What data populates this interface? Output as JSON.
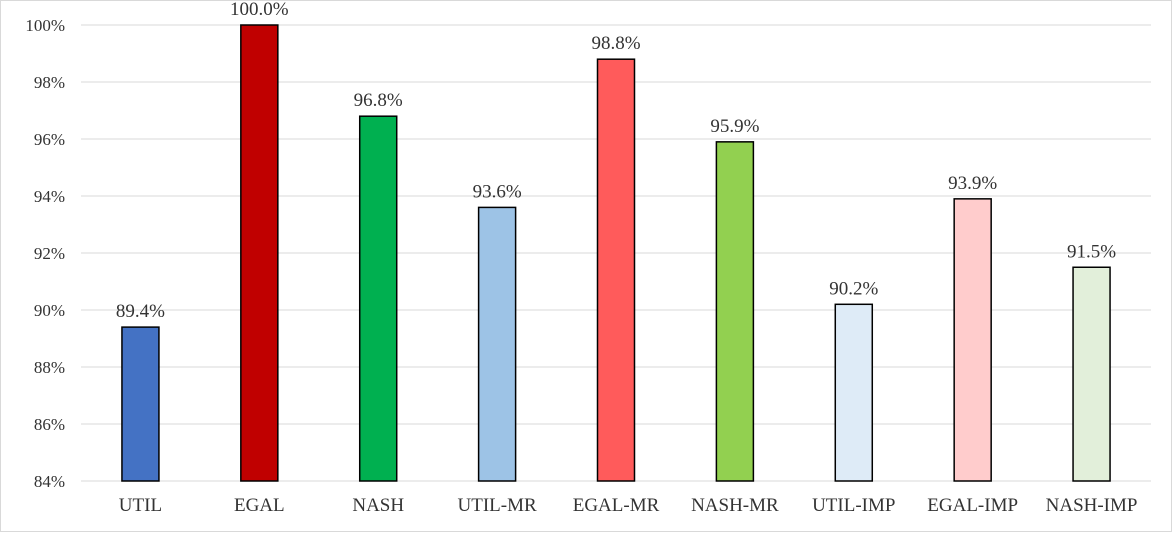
{
  "chart_data": {
    "type": "bar",
    "title": "",
    "xlabel": "",
    "ylabel": "",
    "ylim": [
      84,
      100
    ],
    "yticks": [
      84,
      86,
      88,
      90,
      92,
      94,
      96,
      98,
      100
    ],
    "ytick_format": "percent_integer",
    "grid": true,
    "legend": "none",
    "categories": [
      "UTIL",
      "EGAL",
      "NASH",
      "UTIL-MR",
      "EGAL-MR",
      "NASH-MR",
      "UTIL-IMP",
      "EGAL-IMP",
      "NASH-IMP"
    ],
    "values": [
      89.4,
      100.0,
      96.8,
      93.6,
      98.8,
      95.9,
      90.2,
      93.9,
      91.5
    ],
    "data_labels": [
      "89.4%",
      "100.0%",
      "96.8%",
      "93.6%",
      "98.8%",
      "95.9%",
      "90.2%",
      "93.9%",
      "91.5%"
    ],
    "colors": [
      "#4472C4",
      "#C00000",
      "#00B050",
      "#9DC3E6",
      "#FF5B5B",
      "#92D050",
      "#DEEBF7",
      "#FFCCCC",
      "#E2EFDA"
    ]
  }
}
